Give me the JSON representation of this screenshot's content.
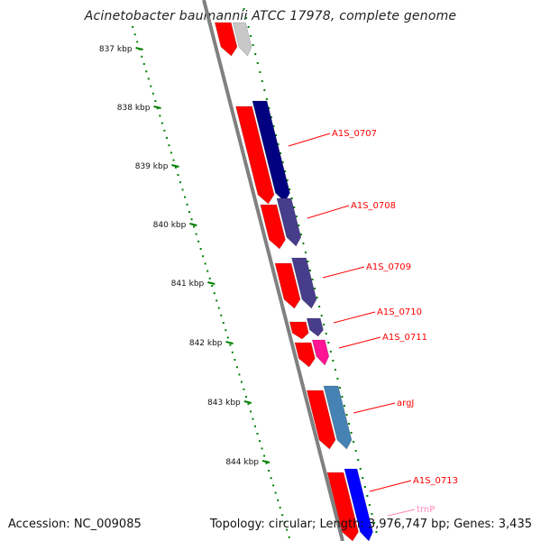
{
  "title": "Acinetobacter baumannii ATCC 17978, complete genome",
  "accession": "Accession: NC_009085",
  "topology": "Topology: circular; Length: 3,976,747 bp; Genes: 3,435",
  "colors": {
    "forward_strand": "#ff0000",
    "backbone": "#808080",
    "scale_ticks": "#008000",
    "label_line": "#ff0000",
    "trna_label": "#ff88bb"
  },
  "scale": [
    {
      "label": "837 kbp",
      "kbp": 837
    },
    {
      "label": "838 kbp",
      "kbp": 838
    },
    {
      "label": "839 kbp",
      "kbp": 839
    },
    {
      "label": "840 kbp",
      "kbp": 840
    },
    {
      "label": "841 kbp",
      "kbp": 841
    },
    {
      "label": "842 kbp",
      "kbp": 842
    },
    {
      "label": "843 kbp",
      "kbp": 843
    },
    {
      "label": "844 kbp",
      "kbp": 844
    }
  ],
  "genes": [
    {
      "label": "",
      "color": "#c8c8c8"
    },
    {
      "label": "A1S_0707",
      "color": "#000080"
    },
    {
      "label": "A1S_0708",
      "color": "#483d8b"
    },
    {
      "label": "A1S_0709",
      "color": "#483d8b"
    },
    {
      "label": "A1S_0710",
      "color": "#483d8b"
    },
    {
      "label": "A1S_0711",
      "color": "#ff1493"
    },
    {
      "label": "argJ",
      "color": "#4682b4"
    },
    {
      "label": "A1S_0713",
      "color": "#0000ff"
    },
    {
      "label": "trnP",
      "color": "#ffb6c1"
    }
  ]
}
